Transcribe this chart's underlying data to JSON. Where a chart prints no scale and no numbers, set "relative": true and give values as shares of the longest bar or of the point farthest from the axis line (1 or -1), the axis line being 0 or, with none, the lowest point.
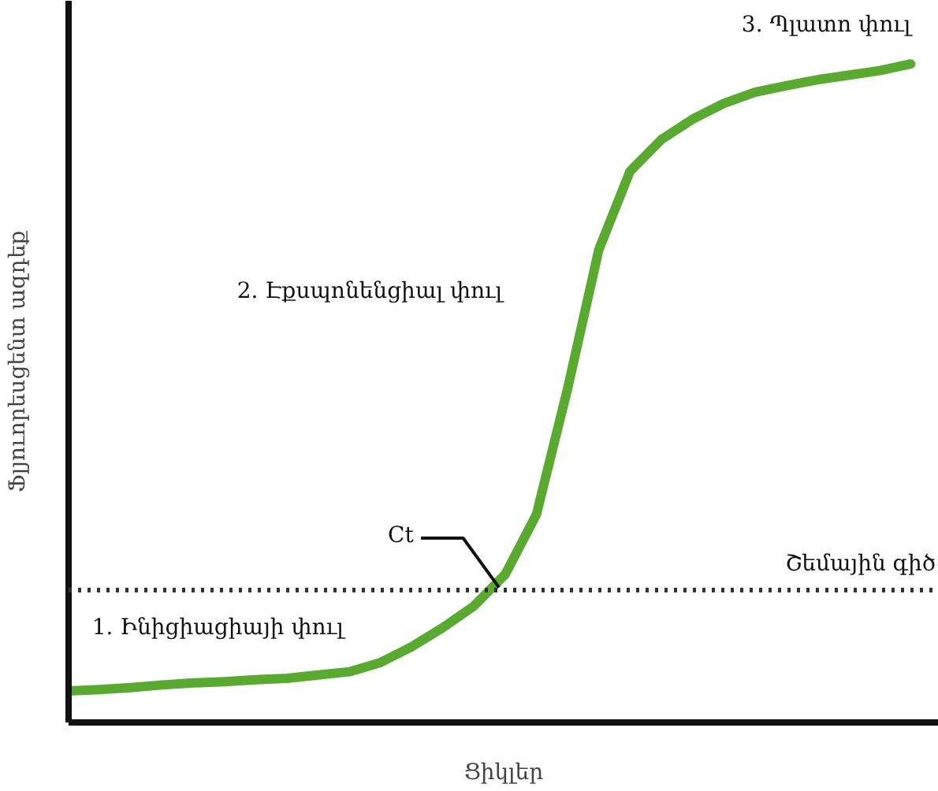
{
  "chart_data": {
    "type": "line",
    "relative": true,
    "xlabel": "Ցիկլեր",
    "ylabel": "Ֆլյուորեսցենտ ազդեք",
    "categories": [
      null,
      null,
      null,
      null,
      null,
      null,
      null,
      null,
      null,
      null,
      null,
      null,
      null,
      null,
      null,
      null,
      null,
      null,
      null,
      null,
      null,
      null,
      null,
      null,
      null,
      null,
      null,
      null
    ],
    "series": [
      {
        "color": "#5aaa32",
        "values": [
          0.048,
          0.05,
          0.053,
          0.057,
          0.06,
          0.062,
          0.065,
          0.067,
          0.072,
          0.077,
          0.091,
          0.115,
          0.144,
          0.177,
          0.225,
          0.316,
          0.507,
          0.718,
          0.837,
          0.885,
          0.916,
          0.94,
          0.957,
          0.967,
          0.976,
          0.983,
          0.99,
          1
        ]
      }
    ],
    "ref_lines": [
      {
        "axis": "y",
        "value": 0.201,
        "label": "Շեմային գիծ",
        "color": "#333333",
        "line_style": "dotted"
      }
    ],
    "annotations": [
      "1. Ինիցիացիայի փուլ",
      "2. Էքսպոնենցիալ փուլ",
      "3. Պլատո փուլ",
      "Ct"
    ],
    "grid": false,
    "marker": "none",
    "line_style": "solid"
  }
}
